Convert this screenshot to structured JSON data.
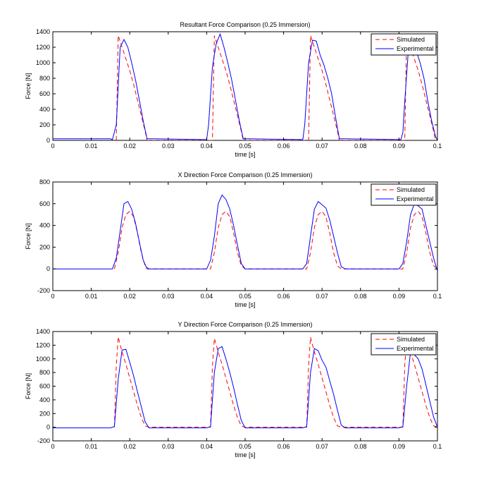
{
  "chart_data": [
    {
      "type": "line",
      "title": "Resultant Force Comparison (0.25 Immersion)",
      "xlabel": "time [s]",
      "ylabel": "Force [N]",
      "xlim": [
        0,
        0.1
      ],
      "ylim": [
        0,
        1400
      ],
      "xticks": [
        0,
        0.01,
        0.02,
        0.03,
        0.04,
        0.05,
        0.06,
        0.07,
        0.08,
        0.09,
        0.1
      ],
      "xtick_labels": [
        "0",
        "0.01",
        "0.02",
        "0.03",
        "0.04",
        "0.05",
        "0.06",
        "0.07",
        "0.08",
        "0.09",
        "0.1"
      ],
      "yticks": [
        0,
        200,
        400,
        600,
        800,
        1000,
        1200,
        1400
      ],
      "ytick_labels": [
        "0",
        "200",
        "400",
        "600",
        "800",
        "1000",
        "1200",
        "1400"
      ],
      "legend_position": "top-right",
      "grid": false,
      "series": [
        {
          "name": "Simulated",
          "color": "#ff0000",
          "style": "dashed",
          "x": [
            0.0165,
            0.017,
            0.018,
            0.019,
            0.02,
            0.021,
            0.022,
            0.023,
            0.024,
            0.0245,
            0.0415,
            0.042,
            0.043,
            0.044,
            0.045,
            0.046,
            0.047,
            0.048,
            0.049,
            0.0495,
            0.0665,
            0.067,
            0.068,
            0.069,
            0.07,
            0.071,
            0.072,
            0.073,
            0.074,
            0.0745,
            0.0915,
            0.092,
            0.093,
            0.094,
            0.095,
            0.096,
            0.097,
            0.098,
            0.099,
            0.0995
          ],
          "y": [
            0,
            1350,
            1200,
            1050,
            900,
            720,
            520,
            320,
            120,
            0,
            0,
            1350,
            1200,
            1050,
            900,
            720,
            520,
            320,
            120,
            0,
            0,
            1350,
            1200,
            1050,
            900,
            720,
            520,
            320,
            120,
            0,
            0,
            1350,
            1200,
            1050,
            900,
            720,
            520,
            320,
            120,
            0
          ]
        },
        {
          "name": "Experimental",
          "color": "#0000ff",
          "style": "solid",
          "x": [
            0,
            0.015,
            0.0155,
            0.0165,
            0.0175,
            0.0185,
            0.0195,
            0.0205,
            0.0215,
            0.0225,
            0.0235,
            0.0245,
            0.026,
            0.04,
            0.0405,
            0.0415,
            0.0425,
            0.0435,
            0.0445,
            0.0455,
            0.0465,
            0.0475,
            0.0485,
            0.0495,
            0.051,
            0.065,
            0.0655,
            0.0665,
            0.0675,
            0.0685,
            0.0695,
            0.0705,
            0.0715,
            0.0725,
            0.0735,
            0.0745,
            0.076,
            0.0905,
            0.091,
            0.0915,
            0.0925,
            0.0935,
            0.0945,
            0.0955,
            0.0965,
            0.0975,
            0.0985,
            0.0995,
            0.1
          ],
          "y": [
            20,
            20,
            10,
            200,
            1200,
            1300,
            1200,
            1000,
            780,
            520,
            250,
            20,
            20,
            10,
            200,
            950,
            1250,
            1370,
            1200,
            1000,
            780,
            520,
            250,
            20,
            20,
            10,
            200,
            1000,
            1290,
            1280,
            1100,
            970,
            800,
            600,
            300,
            20,
            20,
            10,
            100,
            500,
            1200,
            1250,
            1150,
            1000,
            800,
            500,
            250,
            50,
            0
          ]
        }
      ]
    },
    {
      "type": "line",
      "title": "X Direction Force Comparison (0.25 Immersion)",
      "xlabel": "time [s]",
      "ylabel": "Force [N]",
      "xlim": [
        0,
        0.1
      ],
      "ylim": [
        -200,
        800
      ],
      "xticks": [
        0,
        0.01,
        0.02,
        0.03,
        0.04,
        0.05,
        0.06,
        0.07,
        0.08,
        0.09,
        0.1
      ],
      "xtick_labels": [
        "0",
        "0.01",
        "0.02",
        "0.03",
        "0.04",
        "0.05",
        "0.06",
        "0.07",
        "0.08",
        "0.09",
        "0.1"
      ],
      "yticks": [
        -200,
        0,
        200,
        400,
        600,
        800
      ],
      "ytick_labels": [
        "-200",
        "0",
        "200",
        "400",
        "600",
        "800"
      ],
      "legend_position": "top-right",
      "grid": false,
      "series": [
        {
          "name": "Simulated",
          "color": "#ff0000",
          "style": "dashed",
          "x": [
            0.016,
            0.017,
            0.018,
            0.019,
            0.02,
            0.021,
            0.022,
            0.023,
            0.024,
            0.025,
            0.041,
            0.042,
            0.043,
            0.044,
            0.045,
            0.046,
            0.047,
            0.048,
            0.049,
            0.05,
            0.066,
            0.067,
            0.068,
            0.069,
            0.07,
            0.071,
            0.072,
            0.073,
            0.074,
            0.075,
            0.091,
            0.092,
            0.093,
            0.094,
            0.095,
            0.096,
            0.097,
            0.098,
            0.099,
            0.1
          ],
          "y": [
            0,
            150,
            380,
            500,
            530,
            480,
            330,
            150,
            30,
            0,
            0,
            150,
            380,
            500,
            530,
            480,
            330,
            150,
            30,
            0,
            0,
            150,
            380,
            500,
            530,
            480,
            330,
            150,
            30,
            0,
            0,
            150,
            380,
            500,
            530,
            480,
            330,
            150,
            30,
            0
          ]
        },
        {
          "name": "Experimental",
          "color": "#0000ff",
          "style": "solid",
          "x": [
            0,
            0.0155,
            0.0165,
            0.0175,
            0.0185,
            0.0195,
            0.0205,
            0.0215,
            0.0225,
            0.0235,
            0.0245,
            0.026,
            0.04,
            0.041,
            0.042,
            0.043,
            0.044,
            0.045,
            0.046,
            0.047,
            0.048,
            0.049,
            0.05,
            0.051,
            0.065,
            0.066,
            0.067,
            0.068,
            0.069,
            0.07,
            0.071,
            0.072,
            0.073,
            0.074,
            0.075,
            0.076,
            0.09,
            0.091,
            0.092,
            0.093,
            0.094,
            0.095,
            0.096,
            0.097,
            0.098,
            0.099,
            0.1
          ],
          "y": [
            0,
            0,
            100,
            350,
            600,
            620,
            550,
            420,
            250,
            80,
            0,
            0,
            0,
            80,
            300,
            600,
            680,
            640,
            550,
            400,
            220,
            50,
            0,
            0,
            0,
            50,
            300,
            550,
            620,
            590,
            560,
            450,
            300,
            150,
            20,
            0,
            0,
            50,
            250,
            500,
            600,
            580,
            550,
            400,
            250,
            100,
            -20
          ]
        }
      ]
    },
    {
      "type": "line",
      "title": "Y Direction Force Comparison (0.25 Immersion)",
      "xlabel": "time [s]",
      "ylabel": "Force [N]",
      "xlim": [
        0,
        0.1
      ],
      "ylim": [
        -200,
        1400
      ],
      "xticks": [
        0,
        0.01,
        0.02,
        0.03,
        0.04,
        0.05,
        0.06,
        0.07,
        0.08,
        0.09,
        0.1
      ],
      "xtick_labels": [
        "0",
        "0.01",
        "0.02",
        "0.03",
        "0.04",
        "0.05",
        "0.06",
        "0.07",
        "0.08",
        "0.09",
        "0.1"
      ],
      "yticks": [
        -200,
        0,
        200,
        400,
        600,
        800,
        1000,
        1200,
        1400
      ],
      "ytick_labels": [
        "-200",
        "0",
        "200",
        "400",
        "600",
        "800",
        "1000",
        "1200",
        "1400"
      ],
      "legend_position": "top-right",
      "grid": false,
      "series": [
        {
          "name": "Simulated",
          "color": "#ff0000",
          "style": "dashed",
          "x": [
            0.016,
            0.0165,
            0.017,
            0.018,
            0.019,
            0.02,
            0.021,
            0.022,
            0.023,
            0.024,
            0.025,
            0.041,
            0.0415,
            0.042,
            0.043,
            0.044,
            0.045,
            0.046,
            0.047,
            0.048,
            0.049,
            0.05,
            0.066,
            0.0665,
            0.067,
            0.068,
            0.069,
            0.07,
            0.071,
            0.072,
            0.073,
            0.074,
            0.075,
            0.091,
            0.0915,
            0.092,
            0.093,
            0.094,
            0.095,
            0.096,
            0.097,
            0.098,
            0.099,
            0.1
          ],
          "y": [
            0,
            900,
            1320,
            1100,
            920,
            720,
            520,
            320,
            140,
            20,
            0,
            0,
            900,
            1300,
            1100,
            920,
            720,
            520,
            320,
            140,
            20,
            0,
            0,
            900,
            1320,
            1100,
            920,
            720,
            520,
            320,
            140,
            20,
            0,
            0,
            900,
            1300,
            1100,
            920,
            720,
            520,
            320,
            140,
            20,
            0
          ]
        },
        {
          "name": "Experimental",
          "color": "#0000ff",
          "style": "solid",
          "x": [
            0,
            0.015,
            0.016,
            0.017,
            0.018,
            0.019,
            0.02,
            0.021,
            0.022,
            0.023,
            0.024,
            0.025,
            0.026,
            0.04,
            0.041,
            0.042,
            0.043,
            0.044,
            0.045,
            0.046,
            0.047,
            0.048,
            0.049,
            0.05,
            0.051,
            0.065,
            0.066,
            0.067,
            0.068,
            0.069,
            0.07,
            0.071,
            0.072,
            0.073,
            0.074,
            0.075,
            0.076,
            0.09,
            0.091,
            0.092,
            0.093,
            0.094,
            0.095,
            0.096,
            0.097,
            0.098,
            0.099,
            0.1
          ],
          "y": [
            -10,
            -10,
            10,
            700,
            1130,
            1140,
            950,
            750,
            520,
            300,
            80,
            -10,
            -10,
            -10,
            10,
            800,
            1150,
            1180,
            1000,
            800,
            580,
            330,
            100,
            -10,
            -10,
            -10,
            10,
            800,
            1150,
            1120,
            980,
            880,
            680,
            480,
            250,
            30,
            -10,
            -10,
            10,
            600,
            1100,
            1060,
            1000,
            850,
            620,
            380,
            150,
            0
          ]
        }
      ]
    }
  ]
}
